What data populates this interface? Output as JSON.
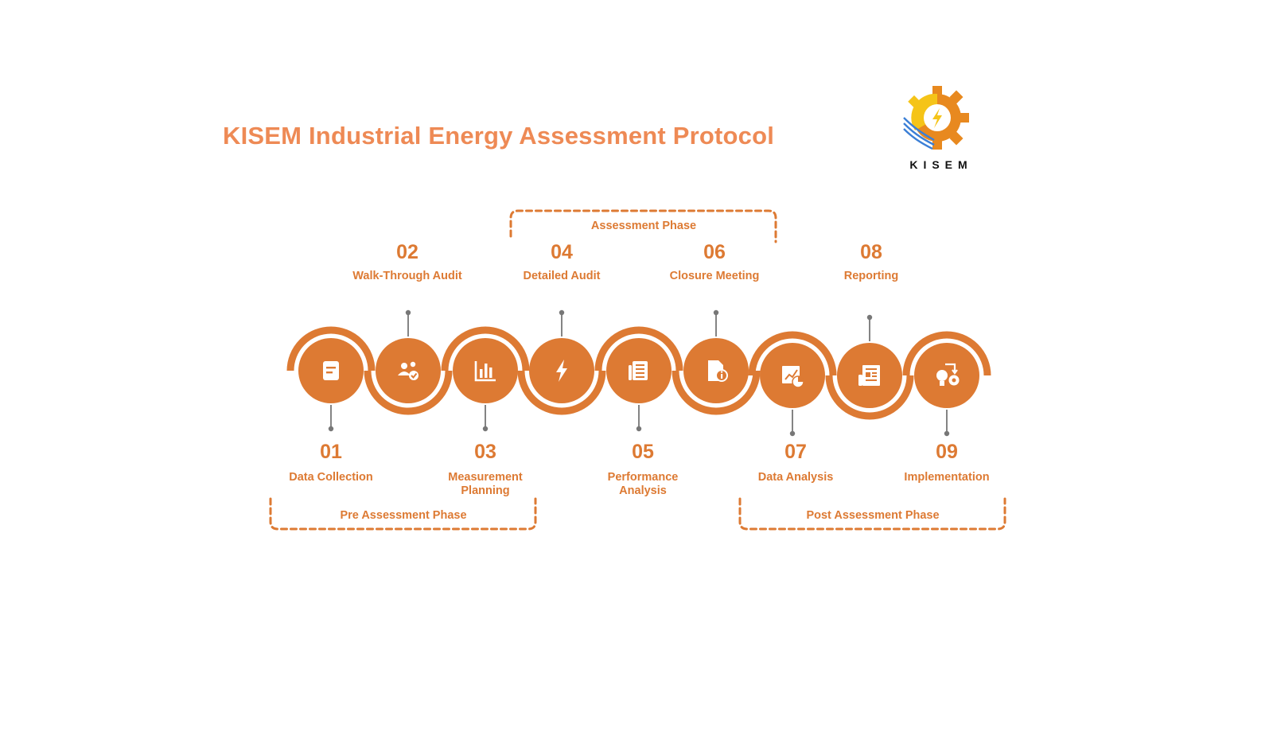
{
  "header": {
    "title": "KISEM Industrial Energy Assessment Protocol"
  },
  "logo": {
    "text": "KISEM"
  },
  "colors": {
    "accent": "#dd7a33",
    "title": "#ee8a55",
    "connector": "#777777",
    "logo_gear": "#e8891f",
    "logo_sun": "#f5c418",
    "logo_wave": "#3b7fd6"
  },
  "phases": {
    "assessment": "Assessment Phase",
    "pre": "Pre Assessment Phase",
    "post": "Post Assessment Phase"
  },
  "steps": [
    {
      "number": "01",
      "label": "Data Collection",
      "icon": "note-icon"
    },
    {
      "number": "02",
      "label": "Walk-Through Audit",
      "icon": "team-check-icon"
    },
    {
      "number": "03",
      "label": "Measurement Planning",
      "icon": "bar-chart-icon"
    },
    {
      "number": "04",
      "label": "Detailed Audit",
      "icon": "lightning-icon"
    },
    {
      "number": "05",
      "label": "Performance Analysis",
      "icon": "document-list-icon"
    },
    {
      "number": "06",
      "label": "Closure Meeting",
      "icon": "document-info-icon"
    },
    {
      "number": "07",
      "label": "Data Analysis",
      "icon": "chart-analysis-icon"
    },
    {
      "number": "08",
      "label": "Reporting",
      "icon": "report-icon"
    },
    {
      "number": "09",
      "label": "Implementation",
      "icon": "idea-gear-icon"
    }
  ]
}
